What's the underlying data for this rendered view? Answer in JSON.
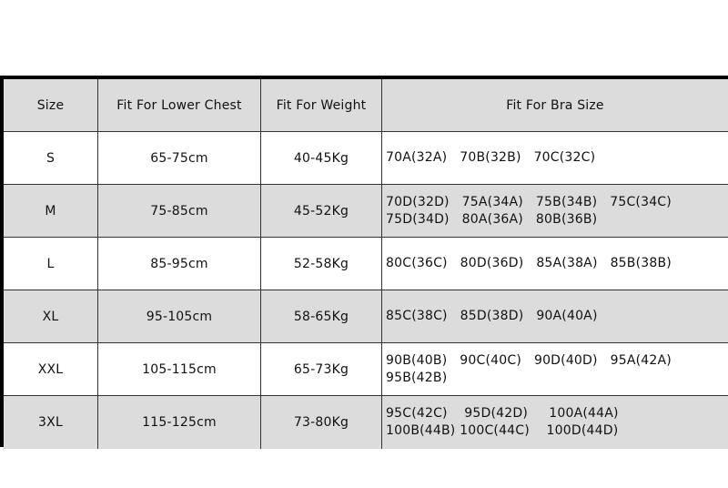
{
  "headers": [
    "Size",
    "Fit For Lower Chest",
    "Fit For Weight",
    "Fit For Bra Size"
  ],
  "rows": [
    {
      "size": "S",
      "chest": "65-75cm",
      "weight": "40-45Kg",
      "bra": [
        "70A(32A)   70B(32B)   70C(32C)"
      ]
    },
    {
      "size": "M",
      "chest": "75-85cm",
      "weight": "45-52Kg",
      "bra": [
        "70D(32D)   75A(34A)   75B(34B)   75C(34C)",
        "75D(34D)   80A(36A)   80B(36B)"
      ]
    },
    {
      "size": "L",
      "chest": "85-95cm",
      "weight": "52-58Kg",
      "bra": [
        "80C(36C)   80D(36D)   85A(38A)   85B(38B)"
      ]
    },
    {
      "size": "XL",
      "chest": "95-105cm",
      "weight": "58-65Kg",
      "bra": [
        "85C(38C)   85D(38D)   90A(40A)"
      ]
    },
    {
      "size": "XXL",
      "chest": "105-115cm",
      "weight": "65-73Kg",
      "bra": [
        "90B(40B)   90C(40C)   90D(40D)   95A(42A)",
        "95B(42B)"
      ]
    },
    {
      "size": "3XL",
      "chest": "115-125cm",
      "weight": "73-80Kg",
      "bra": [
        "95C(42C)    95D(42D)     100A(44A)",
        "100B(44B) 100C(44C)    100D(44D)"
      ]
    }
  ],
  "colors": {
    "header_bg": "#dcdcdc",
    "shaded_row_bg": "#dcdcdc",
    "border": "#000000"
  }
}
